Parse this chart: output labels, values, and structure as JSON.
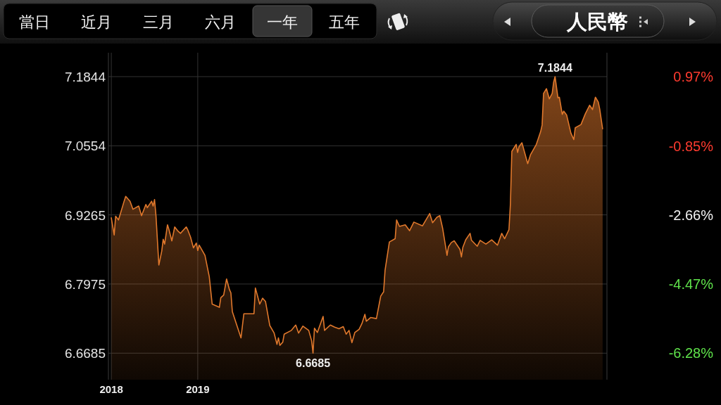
{
  "chart_data": {
    "type": "area",
    "title": "人民幣",
    "annotations": [
      "當日",
      "近月",
      "三月",
      "六月",
      "一年",
      "五年",
      {
        "text": "7.1844",
        "x": "2019-09-06",
        "y": 7.1844
      },
      {
        "text": "6.6685",
        "x": "2019-03-22",
        "y": 6.6685
      }
    ],
    "x": [
      "2018-11-02",
      "2018-11-04",
      "2018-11-05",
      "2018-11-07",
      "2018-11-11",
      "2018-11-12",
      "2018-11-15",
      "2018-11-17",
      "2018-11-21",
      "2018-11-23",
      "2018-11-26",
      "2018-11-27",
      "2018-11-30",
      "2018-12-01",
      "2018-12-02",
      "2018-12-03",
      "2018-12-05",
      "2018-12-07",
      "2018-12-08",
      "2018-12-09",
      "2018-12-11",
      "2018-12-12",
      "2018-12-14",
      "2018-12-16",
      "2018-12-18",
      "2018-12-20",
      "2018-12-24",
      "2018-12-25",
      "2018-12-27",
      "2018-12-29",
      "2018-12-31",
      "2019-01-01",
      "2019-01-02",
      "2019-01-06",
      "2019-01-09",
      "2019-01-11",
      "2019-01-16",
      "2019-01-17",
      "2019-01-19",
      "2019-01-21",
      "2019-01-23",
      "2019-01-24",
      "2019-01-25",
      "2019-01-31",
      "2019-02-02",
      "2019-02-09",
      "2019-02-10",
      "2019-02-13",
      "2019-02-15",
      "2019-02-17",
      "2019-02-20",
      "2019-02-23",
      "2019-02-25",
      "2019-02-26",
      "2019-02-27",
      "2019-03-01",
      "2019-03-02",
      "2019-03-07",
      "2019-03-10",
      "2019-03-12",
      "2019-03-15",
      "2019-03-19",
      "2019-03-21",
      "2019-03-22",
      "2019-03-23",
      "2019-03-25",
      "2019-03-29",
      "2019-03-30",
      "2019-04-03",
      "2019-04-06",
      "2019-04-09",
      "2019-04-12",
      "2019-04-14",
      "2019-04-16",
      "2019-04-18",
      "2019-04-20",
      "2019-04-23",
      "2019-04-25",
      "2019-04-27",
      "2019-04-28",
      "2019-05-01",
      "2019-05-05",
      "2019-05-07",
      "2019-05-08",
      "2019-05-10",
      "2019-05-11",
      "2019-05-14",
      "2019-05-18",
      "2019-05-19",
      "2019-05-21",
      "2019-05-25",
      "2019-05-28",
      "2019-05-31",
      "2019-06-06",
      "2019-06-11",
      "2019-06-13",
      "2019-06-16",
      "2019-06-18",
      "2019-06-20",
      "2019-06-23",
      "2019-06-24",
      "2019-06-26",
      "2019-06-28",
      "2019-07-02",
      "2019-07-03",
      "2019-07-04",
      "2019-07-06",
      "2019-07-09",
      "2019-07-10",
      "2019-07-14",
      "2019-07-16",
      "2019-07-20",
      "2019-07-24",
      "2019-07-28",
      "2019-07-31",
      "2019-08-02",
      "2019-08-05",
      "2019-08-06",
      "2019-08-07",
      "2019-08-10",
      "2019-08-11",
      "2019-08-12",
      "2019-08-14",
      "2019-08-18",
      "2019-08-20",
      "2019-08-24",
      "2019-08-27",
      "2019-08-28",
      "2019-08-29",
      "2019-08-31",
      "2019-09-02",
      "2019-09-04",
      "2019-09-05",
      "2019-09-06",
      "2019-09-08",
      "2019-09-09",
      "2019-09-11",
      "2019-09-12",
      "2019-09-14",
      "2019-09-17",
      "2019-09-19",
      "2019-09-20",
      "2019-09-24",
      "2019-09-27",
      "2019-09-30",
      "2019-10-02",
      "2019-10-04",
      "2019-10-06",
      "2019-10-07",
      "2019-10-09"
    ],
    "series": [
      {
        "color": "#e0782c",
        "values": [
          6.921,
          6.889,
          6.924,
          6.917,
          6.953,
          6.961,
          6.952,
          6.937,
          6.943,
          6.925,
          6.946,
          6.94,
          6.952,
          6.943,
          6.955,
          6.925,
          6.833,
          6.859,
          6.881,
          6.872,
          6.908,
          6.899,
          6.878,
          6.904,
          6.897,
          6.892,
          6.904,
          6.899,
          6.885,
          6.865,
          6.874,
          6.86,
          6.87,
          6.851,
          6.811,
          6.76,
          6.754,
          6.772,
          6.777,
          6.807,
          6.787,
          6.781,
          6.746,
          6.697,
          6.742,
          6.742,
          6.79,
          6.76,
          6.771,
          6.765,
          6.72,
          6.706,
          6.685,
          6.697,
          6.683,
          6.689,
          6.704,
          6.711,
          6.721,
          6.706,
          6.719,
          6.711,
          6.692,
          6.6685,
          6.715,
          6.707,
          6.737,
          6.711,
          6.721,
          6.717,
          6.714,
          6.718,
          6.704,
          6.711,
          6.688,
          6.707,
          6.713,
          6.724,
          6.741,
          6.728,
          6.735,
          6.733,
          6.761,
          6.775,
          6.783,
          6.823,
          6.876,
          6.882,
          6.917,
          6.905,
          6.908,
          6.897,
          6.913,
          6.906,
          6.929,
          6.912,
          6.922,
          6.925,
          6.901,
          6.851,
          6.867,
          6.875,
          6.878,
          6.862,
          6.848,
          6.866,
          6.88,
          6.892,
          6.879,
          6.868,
          6.879,
          6.872,
          6.88,
          6.87,
          6.892,
          6.882,
          6.899,
          6.947,
          7.045,
          7.058,
          7.043,
          7.054,
          7.061,
          7.022,
          7.039,
          7.058,
          7.082,
          7.094,
          7.153,
          7.162,
          7.143,
          7.153,
          7.174,
          7.1844,
          7.145,
          7.146,
          7.114,
          7.12,
          7.113,
          7.079,
          7.067,
          7.089,
          7.095,
          7.115,
          7.131,
          7.123,
          7.146,
          7.137,
          7.124,
          7.087
        ]
      }
    ],
    "xlim": [
      "2018-10-31",
      "2019-10-12"
    ],
    "xticks": [
      {
        "value": "2018-11-02",
        "label": "2018"
      },
      {
        "value": "2019-01-01",
        "label": "2019"
      }
    ],
    "ylim": [
      6.619,
      7.229
    ],
    "yticks": [
      6.6685,
      6.7975,
      6.9265,
      7.0554,
      7.1844
    ],
    "y2lim": [
      -6.98,
      1.6
    ],
    "y2ticks": [
      {
        "value": 0.97,
        "label": "0.97%"
      },
      {
        "value": -0.85,
        "label": "-0.85%"
      },
      {
        "value": -2.66,
        "label": "-2.66%"
      },
      {
        "value": -4.47,
        "label": "-4.47%"
      },
      {
        "value": -6.28,
        "label": "-6.28%"
      }
    ],
    "grid": true
  }
}
